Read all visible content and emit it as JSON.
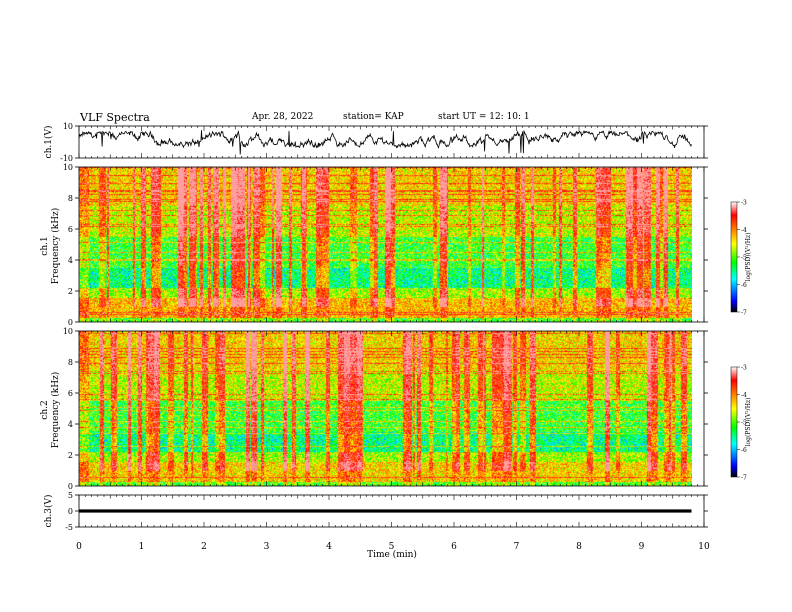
{
  "header": {
    "title": "VLF Spectra",
    "date": "Apr. 28, 2022",
    "station": "station= KAP",
    "start_ut": "start  UT =   12: 10: 1"
  },
  "chart_data": [
    {
      "type": "line",
      "id": "ch1-waveform",
      "ylabel": "ch.1(V)",
      "ylim": [
        -10,
        10
      ],
      "yticks": [
        10,
        -10
      ],
      "x_unit": "min",
      "xlim": [
        0,
        10
      ],
      "data_extent": [
        0,
        9.8
      ],
      "description_values": {
        "baseline": 1,
        "amplitude_range": [
          -5,
          8
        ]
      }
    },
    {
      "type": "heatmap",
      "id": "ch1-spectrogram",
      "ylabel": "ch.1\nFrequency (kHz)",
      "ylabel_line1": "ch.1",
      "ylabel_line2": "Frequency (kHz)",
      "ylim": [
        0,
        10
      ],
      "yticks": [
        0,
        2,
        4,
        6,
        8,
        10
      ],
      "xlim": [
        0,
        10
      ],
      "data_extent": [
        0,
        9.8
      ],
      "colorbar": {
        "label": "log(PSD)(V²/Hz)",
        "range": [
          -7,
          -3
        ],
        "ticks": [
          "-3",
          "-4",
          "-5",
          "-6",
          "-7"
        ]
      }
    },
    {
      "type": "heatmap",
      "id": "ch2-spectrogram",
      "ylabel_line1": "ch.2",
      "ylabel_line2": "Frequency (kHz)",
      "ylim": [
        0,
        10
      ],
      "yticks": [
        0,
        2,
        4,
        6,
        8,
        10
      ],
      "xlim": [
        0,
        10
      ],
      "data_extent": [
        0,
        9.8
      ],
      "colorbar": {
        "label": "log(PSD)(V²/Hz)",
        "range": [
          -7,
          -3
        ],
        "ticks": [
          "-3",
          "-4",
          "-5",
          "-6",
          "-7"
        ]
      }
    },
    {
      "type": "line",
      "id": "ch3-waveform",
      "ylabel": "ch.3(V)",
      "ylim": [
        -5,
        5
      ],
      "yticks": [
        5,
        0,
        -5
      ],
      "xlim": [
        0,
        10
      ],
      "data_extent": [
        0,
        9.8
      ],
      "band": [
        -0.5,
        0.5
      ]
    }
  ],
  "x_axis": {
    "label": "Time (min)",
    "ticks": [
      "0",
      "1",
      "2",
      "3",
      "4",
      "5",
      "6",
      "7",
      "8",
      "9",
      "10"
    ]
  },
  "colors": {
    "cmap": [
      "#000000",
      "#0000ff",
      "#00ffff",
      "#00ff00",
      "#ffff00",
      "#ff8000",
      "#ff0000",
      "#ffffff"
    ]
  }
}
